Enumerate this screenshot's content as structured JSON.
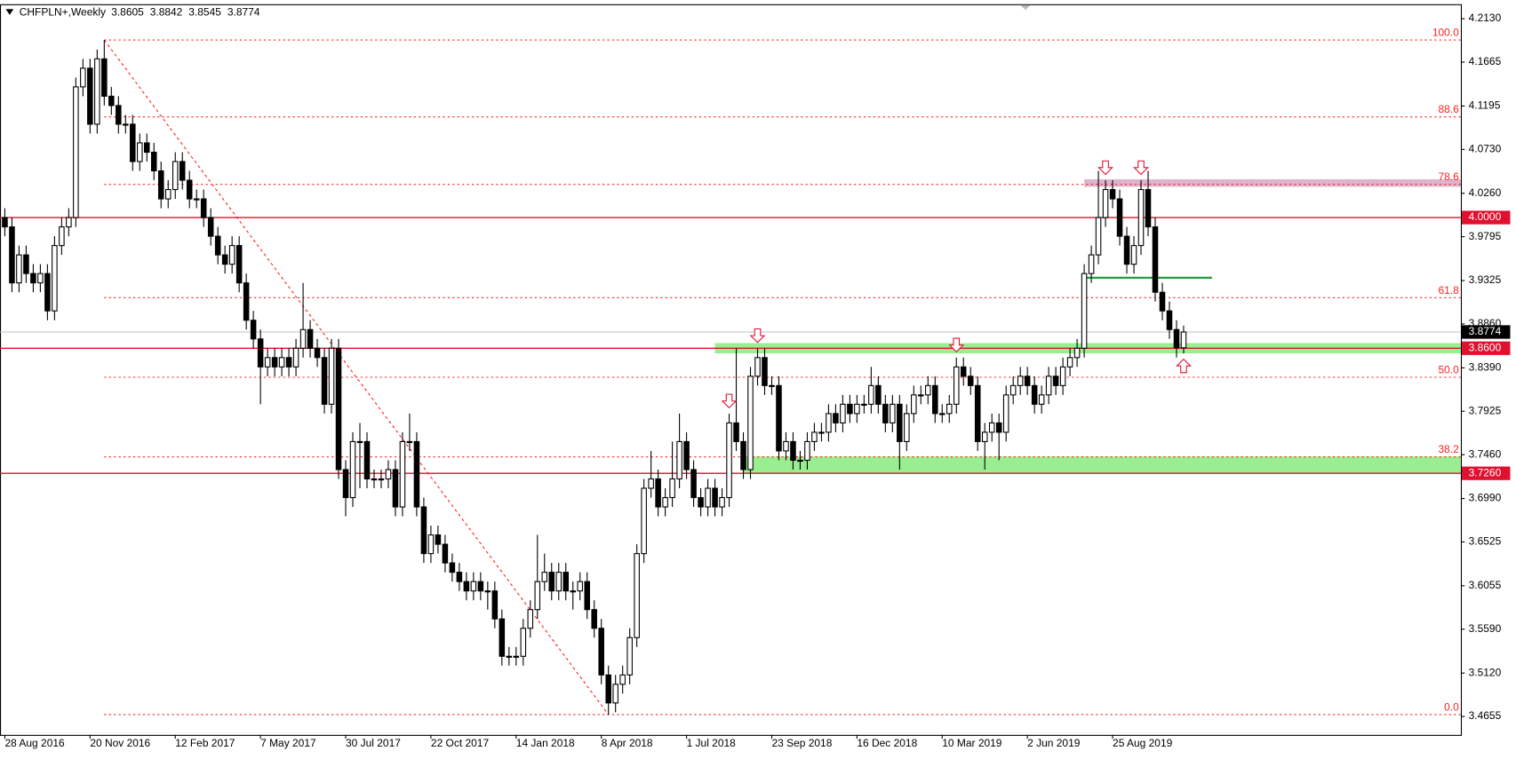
{
  "chart_data": {
    "type": "candlestick",
    "title": "CHFPLN+,Weekly",
    "categories": [
      "28 Aug 2016",
      null,
      null,
      null,
      null,
      null,
      null,
      null,
      null,
      null,
      null,
      null,
      "20 Nov 2016",
      null,
      null,
      null,
      null,
      null,
      null,
      null,
      null,
      null,
      null,
      null,
      "12 Feb 2017",
      null,
      null,
      null,
      null,
      null,
      null,
      null,
      null,
      null,
      null,
      null,
      "7 May 2017",
      null,
      null,
      null,
      null,
      null,
      null,
      null,
      null,
      null,
      null,
      null,
      "30 Jul 2017",
      null,
      null,
      null,
      null,
      null,
      null,
      null,
      null,
      null,
      null,
      null,
      "22 Oct 2017",
      null,
      null,
      null,
      null,
      null,
      null,
      null,
      null,
      null,
      null,
      null,
      "14 Jan 2018",
      null,
      null,
      null,
      null,
      null,
      null,
      null,
      null,
      null,
      null,
      null,
      "8 Apr 2018",
      null,
      null,
      null,
      null,
      null,
      null,
      null,
      null,
      null,
      null,
      null,
      "1 Jul 2018",
      null,
      null,
      null,
      null,
      null,
      null,
      null,
      null,
      null,
      null,
      null,
      "23 Sep 2018",
      null,
      null,
      null,
      null,
      null,
      null,
      null,
      null,
      null,
      null,
      null,
      "16 Dec 2018",
      null,
      null,
      null,
      null,
      null,
      null,
      null,
      null,
      null,
      null,
      null,
      "10 Mar 2019",
      null,
      null,
      null,
      null,
      null,
      null,
      null,
      null,
      null,
      null,
      null,
      "2 Jun 2019",
      null,
      null,
      null,
      null,
      null,
      null,
      null,
      null,
      null,
      null,
      null,
      "25 Aug 2019",
      null,
      null,
      null,
      null,
      null,
      null,
      null,
      null,
      null,
      null
    ],
    "open": [
      4.0,
      3.99,
      3.93,
      3.96,
      3.94,
      3.93,
      3.94,
      3.9,
      3.97,
      3.99,
      4.0,
      4.14,
      4.16,
      4.1,
      4.17,
      4.13,
      4.12,
      4.1,
      4.1,
      4.06,
      4.08,
      4.07,
      4.05,
      4.02,
      4.03,
      4.06,
      4.04,
      4.02,
      4.02,
      4.0,
      3.98,
      3.96,
      3.95,
      3.97,
      3.93,
      3.89,
      3.87,
      3.84,
      3.85,
      3.84,
      3.85,
      3.84,
      3.86,
      3.88,
      3.86,
      3.85,
      3.8,
      3.86,
      3.73,
      3.7,
      3.76,
      3.76,
      3.72,
      3.72,
      3.72,
      3.73,
      3.69,
      3.76,
      3.76,
      3.69,
      3.64,
      3.66,
      3.65,
      3.63,
      3.62,
      3.61,
      3.6,
      3.61,
      3.6,
      3.6,
      3.57,
      3.53,
      3.53,
      3.53,
      3.56,
      3.58,
      3.61,
      3.62,
      3.6,
      3.62,
      3.6,
      3.6,
      3.61,
      3.58,
      3.56,
      3.51,
      3.48,
      3.5,
      3.51,
      3.55,
      3.64,
      3.71,
      3.72,
      3.69,
      3.7,
      3.72,
      3.76,
      3.73,
      3.7,
      3.69,
      3.71,
      3.69,
      3.7,
      3.78,
      3.76,
      3.73,
      3.83,
      3.85,
      3.82,
      3.82,
      3.75,
      3.76,
      3.74,
      3.74,
      3.76,
      3.77,
      3.77,
      3.79,
      3.78,
      3.8,
      3.79,
      3.8,
      3.8,
      3.82,
      3.8,
      3.78,
      3.8,
      3.76,
      3.79,
      3.81,
      3.81,
      3.82,
      3.79,
      3.79,
      3.8,
      3.84,
      3.83,
      3.82,
      3.76,
      3.77,
      3.78,
      3.77,
      3.81,
      3.82,
      3.83,
      3.82,
      3.8,
      3.81,
      3.83,
      3.82,
      3.84,
      3.85,
      3.86,
      3.94,
      3.96,
      4.0,
      4.03,
      4.02,
      3.98,
      3.95,
      3.97,
      4.03,
      3.99,
      3.92,
      3.9,
      3.88,
      3.8605
    ],
    "high": [
      4.01,
      4.0,
      3.97,
      3.97,
      3.95,
      3.95,
      3.95,
      3.98,
      4.0,
      4.01,
      4.15,
      4.17,
      4.17,
      4.18,
      4.19,
      4.14,
      4.13,
      4.11,
      4.11,
      4.09,
      4.09,
      4.08,
      4.06,
      4.04,
      4.07,
      4.07,
      4.05,
      4.03,
      4.03,
      4.01,
      3.99,
      3.97,
      3.98,
      3.98,
      3.94,
      3.9,
      3.88,
      3.86,
      3.86,
      3.86,
      3.86,
      3.87,
      3.93,
      3.89,
      3.87,
      3.86,
      3.87,
      3.87,
      3.74,
      3.77,
      3.78,
      3.77,
      3.73,
      3.73,
      3.74,
      3.74,
      3.77,
      3.79,
      3.77,
      3.7,
      3.67,
      3.67,
      3.66,
      3.64,
      3.63,
      3.62,
      3.62,
      3.62,
      3.61,
      3.61,
      3.58,
      3.54,
      3.54,
      3.57,
      3.59,
      3.66,
      3.64,
      3.63,
      3.63,
      3.63,
      3.61,
      3.62,
      3.62,
      3.59,
      3.57,
      3.52,
      3.51,
      3.52,
      3.56,
      3.65,
      3.72,
      3.75,
      3.73,
      3.71,
      3.76,
      3.79,
      3.77,
      3.74,
      3.71,
      3.72,
      3.72,
      3.71,
      3.79,
      3.86,
      3.77,
      3.84,
      3.86,
      3.86,
      3.83,
      3.83,
      3.77,
      3.77,
      3.75,
      3.77,
      3.78,
      3.78,
      3.8,
      3.8,
      3.81,
      3.81,
      3.81,
      3.81,
      3.84,
      3.83,
      3.81,
      3.81,
      3.81,
      3.8,
      3.82,
      3.82,
      3.83,
      3.83,
      3.8,
      3.81,
      3.85,
      3.85,
      3.84,
      3.83,
      3.78,
      3.79,
      3.79,
      3.82,
      3.83,
      3.84,
      3.84,
      3.83,
      3.82,
      3.84,
      3.84,
      3.85,
      3.86,
      3.87,
      3.95,
      3.97,
      4.05,
      4.04,
      4.04,
      4.03,
      3.99,
      3.98,
      4.04,
      4.05,
      4.0,
      3.93,
      3.91,
      3.89,
      3.8842
    ],
    "low": [
      3.98,
      3.92,
      3.92,
      3.93,
      3.92,
      3.92,
      3.89,
      3.89,
      3.96,
      3.98,
      3.99,
      4.13,
      4.09,
      4.09,
      4.12,
      4.11,
      4.09,
      4.09,
      4.05,
      4.05,
      4.06,
      4.04,
      4.01,
      4.01,
      4.02,
      4.03,
      4.01,
      4.01,
      3.99,
      3.97,
      3.95,
      3.94,
      3.94,
      3.92,
      3.88,
      3.86,
      3.8,
      3.83,
      3.83,
      3.83,
      3.83,
      3.83,
      3.85,
      3.85,
      3.84,
      3.79,
      3.79,
      3.72,
      3.68,
      3.69,
      3.71,
      3.71,
      3.71,
      3.71,
      3.71,
      3.68,
      3.68,
      3.75,
      3.68,
      3.63,
      3.63,
      3.64,
      3.62,
      3.61,
      3.6,
      3.59,
      3.59,
      3.59,
      3.58,
      3.56,
      3.52,
      3.52,
      3.52,
      3.52,
      3.55,
      3.57,
      3.6,
      3.59,
      3.59,
      3.59,
      3.58,
      3.59,
      3.57,
      3.55,
      3.5,
      3.467,
      3.47,
      3.49,
      3.5,
      3.54,
      3.63,
      3.7,
      3.68,
      3.68,
      3.69,
      3.71,
      3.72,
      3.69,
      3.68,
      3.68,
      3.68,
      3.68,
      3.69,
      3.75,
      3.72,
      3.72,
      3.82,
      3.81,
      3.81,
      3.74,
      3.74,
      3.73,
      3.73,
      3.73,
      3.75,
      3.76,
      3.76,
      3.77,
      3.77,
      3.78,
      3.78,
      3.79,
      3.79,
      3.79,
      3.77,
      3.77,
      3.73,
      3.75,
      3.78,
      3.8,
      3.8,
      3.78,
      3.78,
      3.78,
      3.79,
      3.82,
      3.81,
      3.75,
      3.73,
      3.76,
      3.74,
      3.76,
      3.8,
      3.81,
      3.81,
      3.79,
      3.79,
      3.8,
      3.81,
      3.81,
      3.83,
      3.84,
      3.85,
      3.93,
      3.95,
      3.99,
      4.01,
      3.97,
      3.94,
      3.94,
      3.96,
      3.98,
      3.91,
      3.89,
      3.87,
      3.85,
      3.8545
    ],
    "close": [
      3.99,
      3.93,
      3.96,
      3.94,
      3.93,
      3.94,
      3.9,
      3.97,
      3.99,
      4.0,
      4.14,
      4.16,
      4.1,
      4.17,
      4.13,
      4.12,
      4.1,
      4.1,
      4.06,
      4.08,
      4.07,
      4.05,
      4.02,
      4.03,
      4.06,
      4.04,
      4.02,
      4.02,
      4.0,
      3.98,
      3.96,
      3.95,
      3.97,
      3.93,
      3.89,
      3.87,
      3.84,
      3.85,
      3.84,
      3.85,
      3.84,
      3.86,
      3.88,
      3.86,
      3.85,
      3.8,
      3.86,
      3.73,
      3.7,
      3.76,
      3.76,
      3.72,
      3.72,
      3.72,
      3.73,
      3.69,
      3.76,
      3.76,
      3.69,
      3.64,
      3.66,
      3.65,
      3.63,
      3.62,
      3.61,
      3.6,
      3.61,
      3.6,
      3.6,
      3.57,
      3.53,
      3.53,
      3.53,
      3.56,
      3.58,
      3.61,
      3.62,
      3.6,
      3.62,
      3.6,
      3.6,
      3.61,
      3.58,
      3.56,
      3.51,
      3.48,
      3.5,
      3.51,
      3.55,
      3.64,
      3.71,
      3.72,
      3.69,
      3.7,
      3.72,
      3.76,
      3.73,
      3.7,
      3.69,
      3.71,
      3.69,
      3.7,
      3.78,
      3.76,
      3.73,
      3.83,
      3.85,
      3.82,
      3.82,
      3.75,
      3.76,
      3.74,
      3.74,
      3.76,
      3.77,
      3.77,
      3.79,
      3.78,
      3.8,
      3.79,
      3.8,
      3.8,
      3.82,
      3.8,
      3.78,
      3.8,
      3.76,
      3.79,
      3.81,
      3.81,
      3.82,
      3.79,
      3.79,
      3.8,
      3.84,
      3.83,
      3.82,
      3.76,
      3.77,
      3.78,
      3.77,
      3.81,
      3.82,
      3.83,
      3.82,
      3.8,
      3.81,
      3.83,
      3.82,
      3.84,
      3.85,
      3.86,
      3.94,
      3.96,
      4.0,
      4.03,
      4.02,
      3.98,
      3.95,
      3.97,
      4.03,
      3.99,
      3.92,
      3.9,
      3.88,
      3.8605,
      3.8774
    ],
    "ylim": [
      3.4458,
      4.2275
    ],
    "yticks": [
      {
        "value": 4.213,
        "label": "4.2130"
      },
      4.1665,
      4.1195,
      {
        "value": 4.073,
        "label": "4.0730"
      },
      {
        "value": 4.026,
        "label": "4.0260"
      },
      3.9795,
      3.9325,
      {
        "value": 3.886,
        "label": "3.8860"
      },
      {
        "value": 3.839,
        "label": "3.8390"
      },
      3.7925,
      {
        "value": 3.746,
        "label": "3.7460"
      },
      {
        "value": 3.699,
        "label": "3.6990"
      },
      3.6525,
      3.6055,
      {
        "value": 3.559,
        "label": "3.5590"
      },
      {
        "value": 3.512,
        "label": "3.5120"
      },
      3.4655
    ],
    "levels": [
      {
        "value": 4,
        "label": "4.0000"
      },
      {
        "value": 3.86,
        "label": "3.8600"
      },
      {
        "value": 3.726,
        "label": "3.7260"
      }
    ],
    "level_color": "#e0102f",
    "fibonacci": {
      "high": 4.1902,
      "low": 3.4676,
      "color": "#ff2020",
      "levels": [
        {
          "value": 100,
          "label": "100.0"
        },
        88.6,
        78.6,
        61.8,
        {
          "value": 50,
          "label": "50.0"
        },
        38.2,
        {
          "value": 0,
          "label": "0.0"
        }
      ]
    },
    "zones": [
      {
        "low": 3.8545,
        "high": 3.8655,
        "color": "#98ee90"
      },
      {
        "low": 3.7264,
        "high": 3.744,
        "color": "#98ee90"
      },
      {
        "low": 4.033,
        "high": 4.041,
        "color": "#dcb4cc"
      }
    ],
    "trend_line": {
      "value": 3.9355,
      "color": "#20a040"
    }
  }
}
